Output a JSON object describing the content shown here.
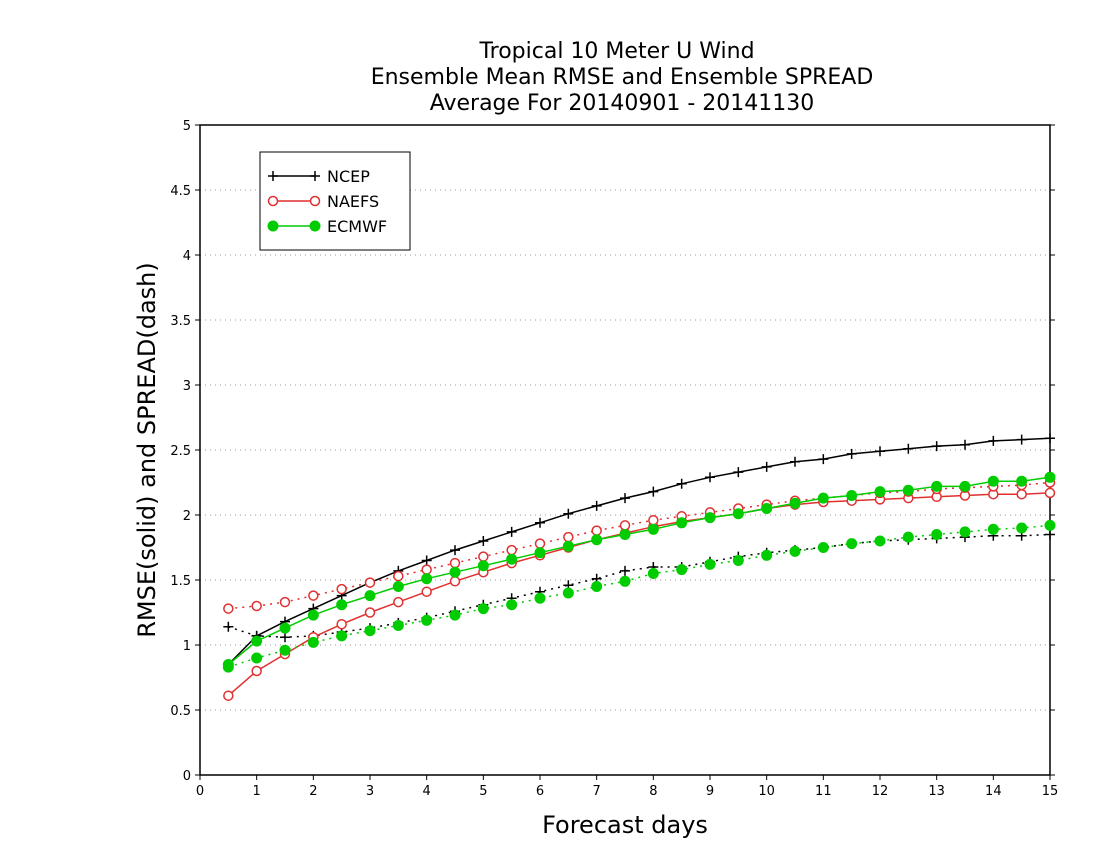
{
  "chart_data": {
    "type": "line",
    "title": "Tropical 10 Meter U Wind",
    "subtitle": "Ensemble Mean RMSE and Ensemble SPREAD",
    "subtitle2": "Average For 20140901 - 20141130",
    "xlabel": "Forecast days",
    "ylabel": "RMSE(solid) and SPREAD(dash)",
    "xlim": [
      0,
      15
    ],
    "ylim": [
      0,
      5
    ],
    "xticks": [
      "0",
      "1",
      "2",
      "3",
      "4",
      "5",
      "6",
      "7",
      "8",
      "9",
      "10",
      "11",
      "12",
      "13",
      "14",
      "15"
    ],
    "yticks": [
      "0",
      "0.5",
      "1",
      "1.5",
      "2",
      "2.5",
      "3",
      "3.5",
      "4",
      "4.5",
      "5"
    ],
    "grid": "horizontal dotted",
    "legend_position": "top-left",
    "x": [
      0.5,
      1,
      1.5,
      2,
      2.5,
      3,
      3.5,
      4,
      4.5,
      5,
      5.5,
      6,
      6.5,
      7,
      7.5,
      8,
      8.5,
      9,
      9.5,
      10,
      10.5,
      11,
      11.5,
      12,
      12.5,
      13,
      13.5,
      14,
      14.5,
      15
    ],
    "series": [
      {
        "name": "NCEP",
        "color": "#000000",
        "marker": "plus",
        "style": "solid",
        "values": [
          0.85,
          1.07,
          1.18,
          1.28,
          1.38,
          1.48,
          1.57,
          1.65,
          1.73,
          1.8,
          1.87,
          1.94,
          2.01,
          2.07,
          2.13,
          2.18,
          2.24,
          2.29,
          2.33,
          2.37,
          2.41,
          2.43,
          2.47,
          2.49,
          2.51,
          2.53,
          2.54,
          2.57,
          2.58,
          2.59
        ]
      },
      {
        "name": "NCEP",
        "color": "#000000",
        "marker": "plus",
        "style": "dash",
        "values": [
          1.14,
          1.07,
          1.06,
          1.07,
          1.1,
          1.13,
          1.17,
          1.21,
          1.26,
          1.31,
          1.36,
          1.41,
          1.46,
          1.51,
          1.57,
          1.6,
          1.6,
          1.64,
          1.68,
          1.71,
          1.73,
          1.75,
          1.78,
          1.8,
          1.81,
          1.82,
          1.83,
          1.84,
          1.84,
          1.85
        ]
      },
      {
        "name": "NAEFS",
        "color": "#e03030",
        "marker": "circle-open",
        "style": "solid",
        "values": [
          0.61,
          0.8,
          0.93,
          1.06,
          1.16,
          1.25,
          1.33,
          1.41,
          1.49,
          1.56,
          1.63,
          1.69,
          1.75,
          1.81,
          1.86,
          1.91,
          1.95,
          1.98,
          2.01,
          2.05,
          2.08,
          2.1,
          2.11,
          2.12,
          2.13,
          2.14,
          2.15,
          2.16,
          2.16,
          2.17
        ]
      },
      {
        "name": "NAEFS",
        "color": "#e03030",
        "marker": "circle-open",
        "style": "dash",
        "values": [
          1.28,
          1.3,
          1.33,
          1.38,
          1.43,
          1.48,
          1.53,
          1.58,
          1.63,
          1.68,
          1.73,
          1.78,
          1.83,
          1.88,
          1.92,
          1.96,
          1.99,
          2.02,
          2.05,
          2.08,
          2.11,
          2.13,
          2.15,
          2.17,
          2.18,
          2.2,
          2.21,
          2.22,
          2.23,
          2.25
        ]
      },
      {
        "name": "ECMWF",
        "color": "#00cc00",
        "marker": "circle-filled",
        "style": "solid",
        "values": [
          0.85,
          1.03,
          1.13,
          1.23,
          1.31,
          1.38,
          1.45,
          1.51,
          1.56,
          1.61,
          1.66,
          1.71,
          1.76,
          1.81,
          1.85,
          1.89,
          1.94,
          1.98,
          2.01,
          2.05,
          2.09,
          2.13,
          2.15,
          2.18,
          2.19,
          2.22,
          2.22,
          2.26,
          2.26,
          2.29
        ]
      },
      {
        "name": "ECMWF",
        "color": "#00cc00",
        "marker": "circle-filled",
        "style": "dash",
        "values": [
          0.83,
          0.9,
          0.96,
          1.02,
          1.07,
          1.11,
          1.15,
          1.19,
          1.23,
          1.28,
          1.31,
          1.36,
          1.4,
          1.45,
          1.49,
          1.55,
          1.58,
          1.62,
          1.65,
          1.69,
          1.72,
          1.75,
          1.78,
          1.8,
          1.83,
          1.85,
          1.87,
          1.89,
          1.9,
          1.92
        ]
      }
    ],
    "legend": [
      {
        "name": "NCEP",
        "color": "#000000",
        "marker": "plus"
      },
      {
        "name": "NAEFS",
        "color": "#e03030",
        "marker": "circle-open"
      },
      {
        "name": "ECMWF",
        "color": "#00cc00",
        "marker": "circle-filled"
      }
    ]
  }
}
